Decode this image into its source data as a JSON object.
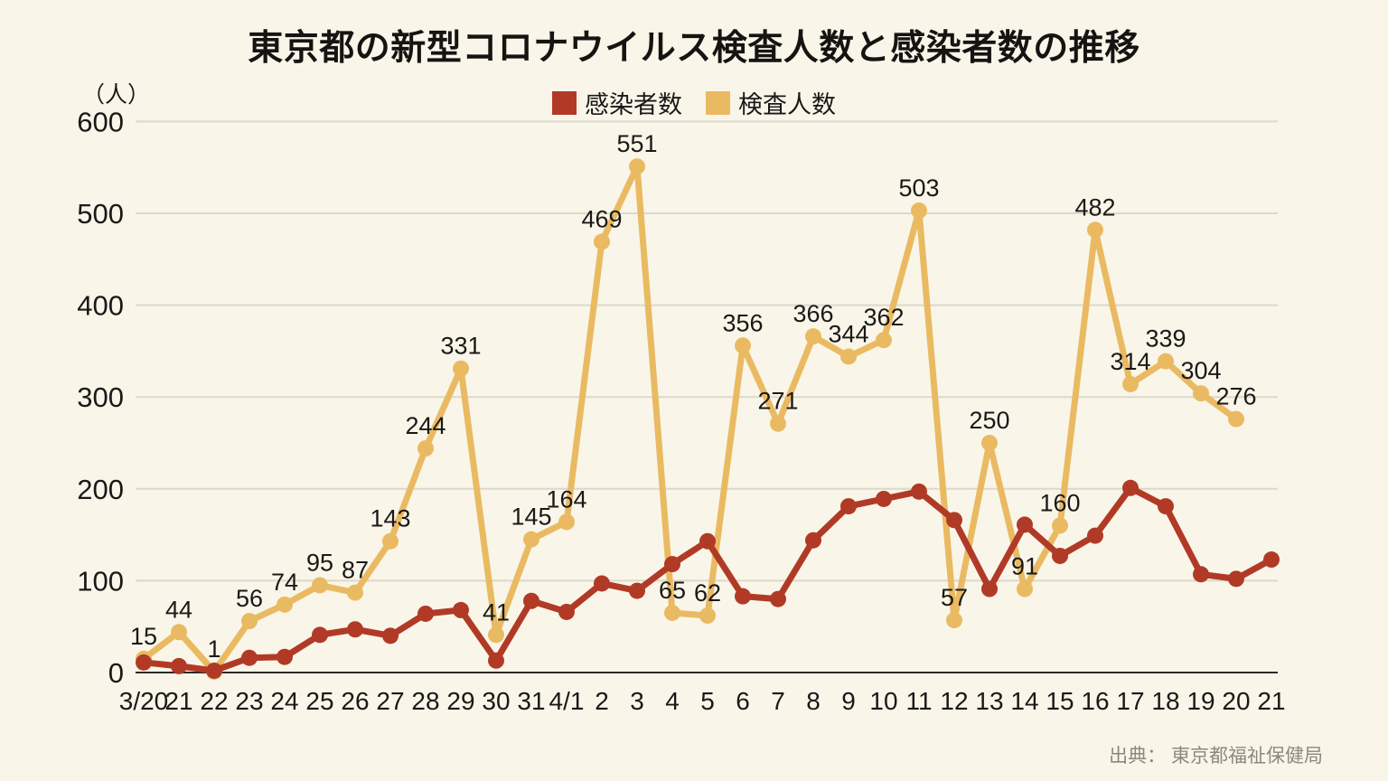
{
  "title": "東京都の新型コロナウイルス検査人数と感染者数の推移",
  "y_axis_unit": "（人）",
  "source": "出典： 東京都福祉保健局",
  "legend": {
    "items": [
      {
        "id": "infected",
        "label": "感染者数"
      },
      {
        "id": "tested",
        "label": "検査人数"
      }
    ]
  },
  "colors": {
    "background": "#f9f6e9",
    "infected": "#b13a27",
    "tested": "#eaba62",
    "grid": "#dcd9cb",
    "axis": "#2b2a26",
    "tick_text": "#1a1918",
    "data_label": "#1a1918",
    "title_text": "#161412",
    "source_text": "#8b897e"
  },
  "chart_data": {
    "type": "line",
    "title": "東京都の新型コロナウイルス検査人数と感染者数の推移",
    "xlabel": "",
    "ylabel": "（人）",
    "ylim": [
      0,
      600
    ],
    "y_ticks": [
      0,
      100,
      200,
      300,
      400,
      500,
      600
    ],
    "grid": true,
    "legend_position": "top",
    "categories": [
      "3/20",
      "21",
      "22",
      "23",
      "24",
      "25",
      "26",
      "27",
      "28",
      "29",
      "30",
      "31",
      "4/1",
      "2",
      "3",
      "4",
      "5",
      "6",
      "7",
      "8",
      "9",
      "10",
      "11",
      "12",
      "13",
      "14",
      "15",
      "16",
      "17",
      "18",
      "19",
      "20",
      "21"
    ],
    "series": [
      {
        "id": "infected",
        "name": "感染者数",
        "color": "#b13a27",
        "point_labels": false,
        "values": [
          11,
          7,
          2,
          16,
          17,
          41,
          47,
          40,
          64,
          68,
          13,
          78,
          66,
          97,
          89,
          118,
          143,
          83,
          80,
          144,
          181,
          189,
          197,
          166,
          91,
          161,
          127,
          149,
          201,
          181,
          107,
          102,
          123
        ]
      },
      {
        "id": "tested",
        "name": "検査人数",
        "color": "#eaba62",
        "point_labels": true,
        "values": [
          15,
          44,
          1,
          56,
          74,
          95,
          87,
          143,
          244,
          331,
          41,
          145,
          164,
          469,
          551,
          65,
          62,
          356,
          271,
          366,
          344,
          362,
          503,
          57,
          250,
          91,
          160,
          482,
          314,
          339,
          304,
          276,
          null
        ]
      }
    ]
  }
}
